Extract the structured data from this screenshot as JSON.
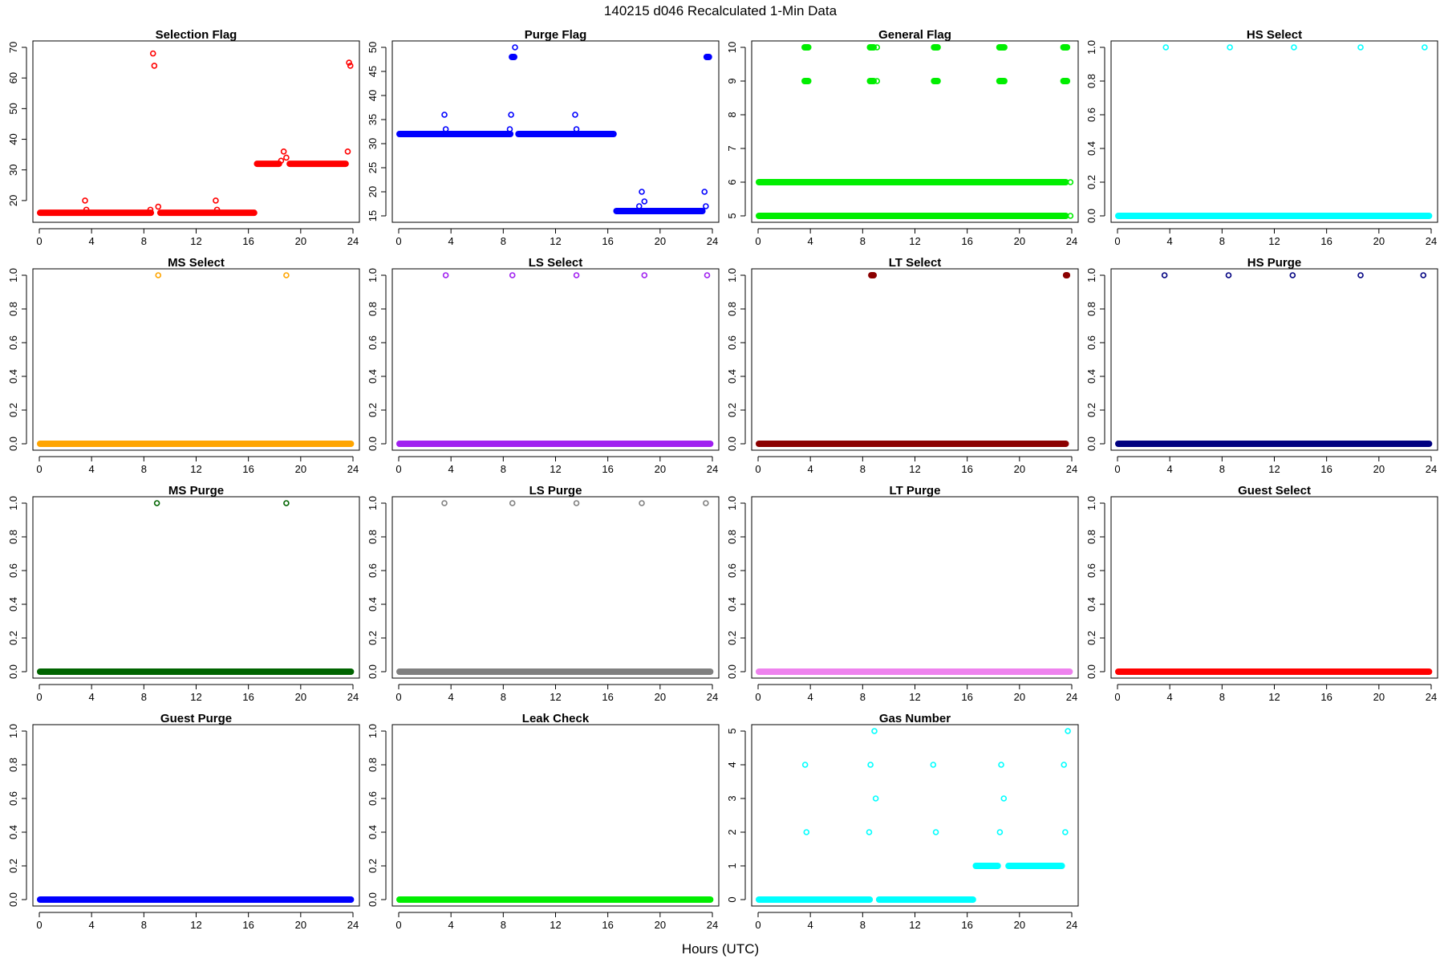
{
  "figure": {
    "title": "140215   d046   Recalculated 1-Min Data",
    "xlabel": "Hours (UTC)"
  },
  "chart_data": [
    {
      "type": "scatter",
      "title": "Selection Flag",
      "color": "#ff0000",
      "xlim": [
        0,
        24
      ],
      "ylim": [
        15,
        70
      ],
      "xticks": [
        0,
        4,
        8,
        12,
        16,
        20,
        24
      ],
      "yticks": [
        20,
        30,
        40,
        50,
        60,
        70
      ],
      "runs": [
        {
          "x0": 0,
          "x1": 8.6,
          "y": 16
        },
        {
          "x0": 9.2,
          "x1": 16.5,
          "y": 16
        },
        {
          "x0": 16.6,
          "x1": 18.4,
          "y": 32
        },
        {
          "x0": 19.1,
          "x1": 23.5,
          "y": 32
        }
      ],
      "points": [
        [
          3.5,
          20
        ],
        [
          3.6,
          17
        ],
        [
          8.5,
          17
        ],
        [
          8.7,
          68
        ],
        [
          8.8,
          64
        ],
        [
          9.1,
          18
        ],
        [
          13.5,
          20
        ],
        [
          13.6,
          17
        ],
        [
          18.5,
          33
        ],
        [
          18.7,
          36
        ],
        [
          18.9,
          34
        ],
        [
          23.6,
          36
        ],
        [
          23.7,
          65
        ],
        [
          23.8,
          64
        ]
      ]
    },
    {
      "type": "scatter",
      "title": "Purge Flag",
      "color": "#0000ff",
      "xlim": [
        0,
        24
      ],
      "ylim": [
        15,
        50
      ],
      "xticks": [
        0,
        4,
        8,
        12,
        16,
        20,
        24
      ],
      "yticks": [
        15,
        20,
        25,
        30,
        35,
        40,
        45,
        50
      ],
      "runs": [
        {
          "x0": 0,
          "x1": 8.6,
          "y": 32
        },
        {
          "x0": 9.1,
          "x1": 16.5,
          "y": 32
        },
        {
          "x0": 16.6,
          "x1": 23.3,
          "y": 16
        },
        {
          "x0": 8.6,
          "x1": 8.9,
          "y": 48
        },
        {
          "x0": 23.5,
          "x1": 23.8,
          "y": 48
        }
      ],
      "points": [
        [
          3.5,
          36
        ],
        [
          3.6,
          33
        ],
        [
          8.5,
          33
        ],
        [
          8.6,
          36
        ],
        [
          8.9,
          50
        ],
        [
          13.5,
          36
        ],
        [
          13.6,
          33
        ],
        [
          18.4,
          17
        ],
        [
          18.6,
          20
        ],
        [
          18.8,
          18
        ],
        [
          23.4,
          20
        ],
        [
          23.5,
          17
        ]
      ]
    },
    {
      "type": "scatter",
      "title": "General Flag",
      "color": "#00ee00",
      "xlim": [
        0,
        24
      ],
      "ylim": [
        5,
        10
      ],
      "xticks": [
        0,
        4,
        8,
        12,
        16,
        20,
        24
      ],
      "yticks": [
        5,
        6,
        7,
        8,
        9,
        10
      ],
      "runs": [
        {
          "x0": 0,
          "x1": 23.6,
          "y": 6
        },
        {
          "x0": 0,
          "x1": 23.6,
          "y": 5
        },
        {
          "x0": 3.5,
          "x1": 3.9,
          "y": 10
        },
        {
          "x0": 8.5,
          "x1": 8.9,
          "y": 10
        },
        {
          "x0": 13.4,
          "x1": 13.8,
          "y": 10
        },
        {
          "x0": 18.4,
          "x1": 18.9,
          "y": 10
        },
        {
          "x0": 23.3,
          "x1": 23.7,
          "y": 10
        },
        {
          "x0": 3.5,
          "x1": 3.9,
          "y": 9
        },
        {
          "x0": 8.5,
          "x1": 8.9,
          "y": 9
        },
        {
          "x0": 13.4,
          "x1": 13.8,
          "y": 9
        },
        {
          "x0": 18.4,
          "x1": 18.9,
          "y": 9
        },
        {
          "x0": 23.3,
          "x1": 23.7,
          "y": 9
        }
      ],
      "points": [
        [
          9.1,
          10
        ],
        [
          9.1,
          9
        ],
        [
          23.9,
          6
        ],
        [
          23.9,
          5
        ]
      ]
    },
    {
      "type": "scatter",
      "title": "HS Select",
      "color": "#00ffff",
      "xlim": [
        0,
        24
      ],
      "ylim": [
        0,
        1
      ],
      "xticks": [
        0,
        4,
        8,
        12,
        16,
        20,
        24
      ],
      "yticks": [
        0.0,
        0.2,
        0.4,
        0.6,
        0.8,
        1.0
      ],
      "runs": [
        {
          "x0": 0,
          "x1": 23.9,
          "y": 0
        }
      ],
      "points": [
        [
          3.7,
          1
        ],
        [
          8.6,
          1
        ],
        [
          13.5,
          1
        ],
        [
          18.6,
          1
        ],
        [
          23.5,
          1
        ]
      ]
    },
    {
      "type": "scatter",
      "title": "MS Select",
      "color": "#ffa500",
      "xlim": [
        0,
        24
      ],
      "ylim": [
        0,
        1
      ],
      "xticks": [
        0,
        4,
        8,
        12,
        16,
        20,
        24
      ],
      "yticks": [
        0.0,
        0.2,
        0.4,
        0.6,
        0.8,
        1.0
      ],
      "runs": [
        {
          "x0": 0,
          "x1": 23.9,
          "y": 0
        }
      ],
      "points": [
        [
          9.1,
          1
        ],
        [
          18.9,
          1
        ]
      ]
    },
    {
      "type": "scatter",
      "title": "LS Select",
      "color": "#a020f0",
      "xlim": [
        0,
        24
      ],
      "ylim": [
        0,
        1
      ],
      "xticks": [
        0,
        4,
        8,
        12,
        16,
        20,
        24
      ],
      "yticks": [
        0.0,
        0.2,
        0.4,
        0.6,
        0.8,
        1.0
      ],
      "runs": [
        {
          "x0": 0,
          "x1": 23.9,
          "y": 0
        }
      ],
      "points": [
        [
          3.6,
          1
        ],
        [
          8.7,
          1
        ],
        [
          13.6,
          1
        ],
        [
          18.8,
          1
        ],
        [
          23.6,
          1
        ]
      ]
    },
    {
      "type": "scatter",
      "title": "LT Select",
      "color": "#8b0000",
      "xlim": [
        0,
        24
      ],
      "ylim": [
        0,
        1
      ],
      "xticks": [
        0,
        4,
        8,
        12,
        16,
        20,
        24
      ],
      "yticks": [
        0.0,
        0.2,
        0.4,
        0.6,
        0.8,
        1.0
      ],
      "runs": [
        {
          "x0": 0,
          "x1": 23.6,
          "y": 0
        },
        {
          "x0": 8.6,
          "x1": 8.9,
          "y": 1
        },
        {
          "x0": 23.5,
          "x1": 23.7,
          "y": 1
        }
      ],
      "points": []
    },
    {
      "type": "scatter",
      "title": "HS Purge",
      "color": "#000080",
      "xlim": [
        0,
        24
      ],
      "ylim": [
        0,
        1
      ],
      "xticks": [
        0,
        4,
        8,
        12,
        16,
        20,
        24
      ],
      "yticks": [
        0.0,
        0.2,
        0.4,
        0.6,
        0.8,
        1.0
      ],
      "runs": [
        {
          "x0": 0,
          "x1": 23.9,
          "y": 0
        }
      ],
      "points": [
        [
          3.6,
          1
        ],
        [
          8.5,
          1
        ],
        [
          13.4,
          1
        ],
        [
          18.6,
          1
        ],
        [
          23.4,
          1
        ]
      ]
    },
    {
      "type": "scatter",
      "title": "MS Purge",
      "color": "#006400",
      "xlim": [
        0,
        24
      ],
      "ylim": [
        0,
        1
      ],
      "xticks": [
        0,
        4,
        8,
        12,
        16,
        20,
        24
      ],
      "yticks": [
        0.0,
        0.2,
        0.4,
        0.6,
        0.8,
        1.0
      ],
      "runs": [
        {
          "x0": 0,
          "x1": 23.9,
          "y": 0
        }
      ],
      "points": [
        [
          9.0,
          1
        ],
        [
          18.9,
          1
        ]
      ]
    },
    {
      "type": "scatter",
      "title": "LS Purge",
      "color": "#808080",
      "xlim": [
        0,
        24
      ],
      "ylim": [
        0,
        1
      ],
      "xticks": [
        0,
        4,
        8,
        12,
        16,
        20,
        24
      ],
      "yticks": [
        0.0,
        0.2,
        0.4,
        0.6,
        0.8,
        1.0
      ],
      "runs": [
        {
          "x0": 0,
          "x1": 23.9,
          "y": 0
        }
      ],
      "points": [
        [
          3.5,
          1
        ],
        [
          8.7,
          1
        ],
        [
          13.6,
          1
        ],
        [
          18.6,
          1
        ],
        [
          23.5,
          1
        ]
      ]
    },
    {
      "type": "scatter",
      "title": "LT Purge",
      "color": "#ee82ee",
      "xlim": [
        0,
        24
      ],
      "ylim": [
        0,
        1
      ],
      "xticks": [
        0,
        4,
        8,
        12,
        16,
        20,
        24
      ],
      "yticks": [
        0.0,
        0.2,
        0.4,
        0.6,
        0.8,
        1.0
      ],
      "runs": [
        {
          "x0": 0,
          "x1": 23.9,
          "y": 0
        }
      ],
      "points": []
    },
    {
      "type": "scatter",
      "title": "Guest Select",
      "color": "#ff0000",
      "xlim": [
        0,
        24
      ],
      "ylim": [
        0,
        1
      ],
      "xticks": [
        0,
        4,
        8,
        12,
        16,
        20,
        24
      ],
      "yticks": [
        0.0,
        0.2,
        0.4,
        0.6,
        0.8,
        1.0
      ],
      "runs": [
        {
          "x0": 0,
          "x1": 23.9,
          "y": 0
        }
      ],
      "points": []
    },
    {
      "type": "scatter",
      "title": "Guest Purge",
      "color": "#0000ff",
      "xlim": [
        0,
        24
      ],
      "ylim": [
        0,
        1
      ],
      "xticks": [
        0,
        4,
        8,
        12,
        16,
        20,
        24
      ],
      "yticks": [
        0.0,
        0.2,
        0.4,
        0.6,
        0.8,
        1.0
      ],
      "runs": [
        {
          "x0": 0,
          "x1": 23.9,
          "y": 0
        }
      ],
      "points": []
    },
    {
      "type": "scatter",
      "title": "Leak Check",
      "color": "#00ee00",
      "xlim": [
        0,
        24
      ],
      "ylim": [
        0,
        1
      ],
      "xticks": [
        0,
        4,
        8,
        12,
        16,
        20,
        24
      ],
      "yticks": [
        0.0,
        0.2,
        0.4,
        0.6,
        0.8,
        1.0
      ],
      "runs": [
        {
          "x0": 0,
          "x1": 23.9,
          "y": 0
        }
      ],
      "points": []
    },
    {
      "type": "scatter",
      "title": "Gas Number",
      "color": "#00ffff",
      "xlim": [
        0,
        24
      ],
      "ylim": [
        0,
        5
      ],
      "xticks": [
        0,
        4,
        8,
        12,
        16,
        20,
        24
      ],
      "yticks": [
        0,
        1,
        2,
        3,
        4,
        5
      ],
      "runs": [
        {
          "x0": 0,
          "x1": 8.6,
          "y": 0
        },
        {
          "x0": 9.2,
          "x1": 16.5,
          "y": 0
        },
        {
          "x0": 16.6,
          "x1": 18.4,
          "y": 1
        },
        {
          "x0": 19.1,
          "x1": 23.3,
          "y": 1
        }
      ],
      "points": [
        [
          3.6,
          4
        ],
        [
          3.7,
          2
        ],
        [
          8.6,
          4
        ],
        [
          8.5,
          2
        ],
        [
          8.9,
          5
        ],
        [
          9.0,
          3
        ],
        [
          13.4,
          4
        ],
        [
          13.6,
          2
        ],
        [
          18.6,
          4
        ],
        [
          18.5,
          2
        ],
        [
          18.8,
          3
        ],
        [
          23.4,
          4
        ],
        [
          23.5,
          2
        ],
        [
          23.7,
          5
        ]
      ]
    }
  ]
}
